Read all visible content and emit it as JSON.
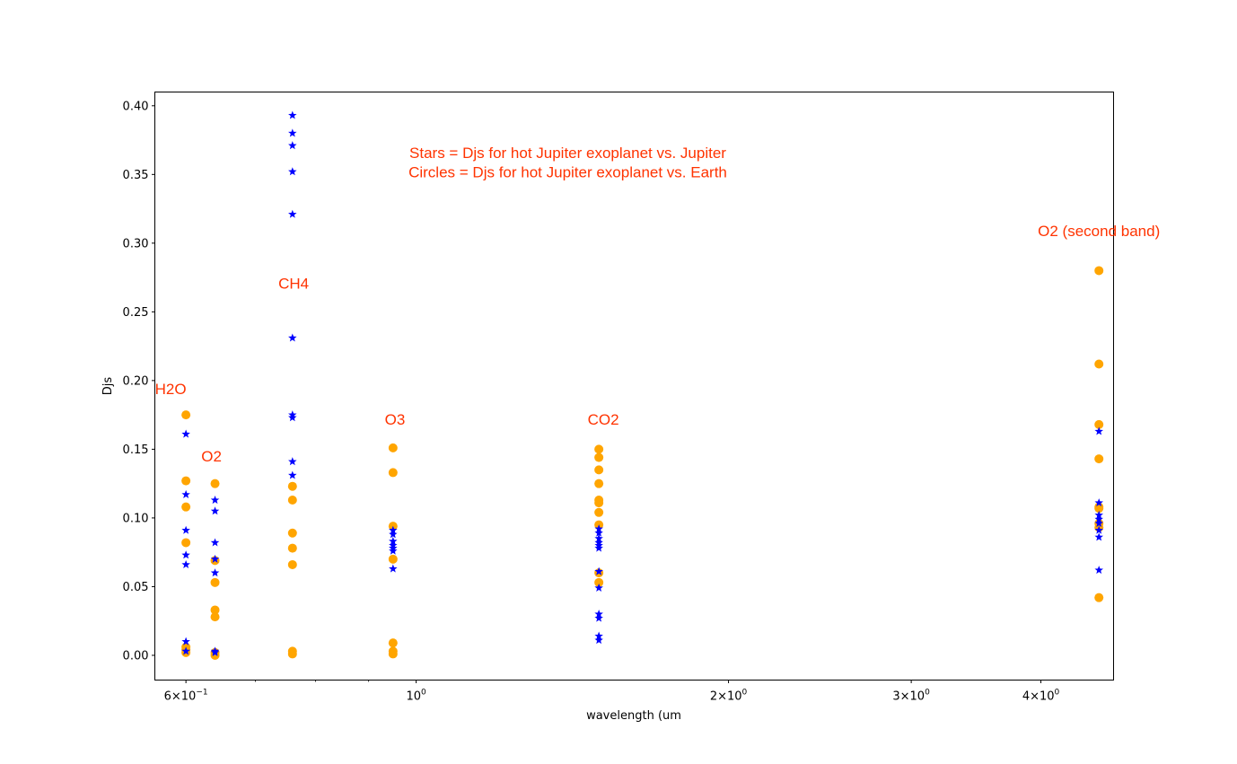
{
  "chart_data": {
    "type": "scatter",
    "xlabel": "wavelength (um",
    "ylabel": "Djs",
    "x_scale": "log",
    "xlim": [
      0.56,
      4.7
    ],
    "ylim": [
      -0.018,
      0.41
    ],
    "grid": false,
    "x_major_ticks": [
      {
        "value": 0.6,
        "base": "6×10",
        "exp": "−1"
      },
      {
        "value": 1.0,
        "base": "10",
        "exp": "0"
      },
      {
        "value": 2.0,
        "base": "2×10",
        "exp": "0"
      },
      {
        "value": 3.0,
        "base": "3×10",
        "exp": "0"
      },
      {
        "value": 4.0,
        "base": "4×10",
        "exp": "0"
      }
    ],
    "x_minor_ticks": [
      0.7,
      0.8,
      0.9
    ],
    "y_ticks": [
      {
        "value": 0.0,
        "label": "0.00"
      },
      {
        "value": 0.05,
        "label": "0.05"
      },
      {
        "value": 0.1,
        "label": "0.10"
      },
      {
        "value": 0.15,
        "label": "0.15"
      },
      {
        "value": 0.2,
        "label": "0.20"
      },
      {
        "value": 0.25,
        "label": "0.25"
      },
      {
        "value": 0.3,
        "label": "0.30"
      },
      {
        "value": 0.35,
        "label": "0.35"
      },
      {
        "value": 0.4,
        "label": "0.40"
      }
    ],
    "colors": {
      "stars": "#0000ff",
      "circles": "#ffa500",
      "annotations": "#ff3300"
    },
    "annotations": [
      {
        "text": "Stars = Djs for hot Jupiter exoplanet vs. Jupiter",
        "x": 1.4,
        "y": 0.362
      },
      {
        "text": "Circles = Djs for hot Jupiter exoplanet vs. Earth",
        "x": 1.4,
        "y": 0.348
      },
      {
        "text": "H2O",
        "x": 0.58,
        "y": 0.19
      },
      {
        "text": "O2",
        "x": 0.635,
        "y": 0.141
      },
      {
        "text": "CH4",
        "x": 0.762,
        "y": 0.267
      },
      {
        "text": "O3",
        "x": 0.954,
        "y": 0.168
      },
      {
        "text": "CO2",
        "x": 1.515,
        "y": 0.168
      },
      {
        "text": "O2 (second band)",
        "x": 4.55,
        "y": 0.305
      }
    ],
    "series": [
      {
        "marker": "star",
        "points": [
          {
            "x": 0.6,
            "y": [
              0.161,
              0.117,
              0.091,
              0.073,
              0.066,
              0.01,
              0.003
            ]
          },
          {
            "x": 0.64,
            "y": [
              0.113,
              0.105,
              0.082,
              0.07,
              0.06,
              0.003,
              0.002
            ]
          },
          {
            "x": 0.76,
            "y": [
              0.393,
              0.38,
              0.371,
              0.352,
              0.321,
              0.231,
              0.175,
              0.173,
              0.141,
              0.131
            ]
          },
          {
            "x": 0.95,
            "y": [
              0.091,
              0.088,
              0.083,
              0.08,
              0.078,
              0.076,
              0.063
            ]
          },
          {
            "x": 1.5,
            "y": [
              0.092,
              0.089,
              0.085,
              0.082,
              0.08,
              0.078,
              0.061,
              0.049,
              0.03,
              0.027,
              0.014,
              0.011
            ]
          },
          {
            "x": 4.55,
            "y": [
              0.163,
              0.111,
              0.102,
              0.099,
              0.096,
              0.091,
              0.086,
              0.062
            ]
          }
        ]
      },
      {
        "marker": "circle",
        "points": [
          {
            "x": 0.6,
            "y": [
              0.175,
              0.127,
              0.108,
              0.082,
              0.006,
              0.004,
              0.002
            ]
          },
          {
            "x": 0.64,
            "y": [
              0.125,
              0.069,
              0.053,
              0.033,
              0.028,
              0.002,
              0.0
            ]
          },
          {
            "x": 0.76,
            "y": [
              0.123,
              0.113,
              0.089,
              0.078,
              0.066,
              0.003,
              0.001
            ]
          },
          {
            "x": 0.95,
            "y": [
              0.151,
              0.133,
              0.094,
              0.07,
              0.009,
              0.003,
              0.001
            ]
          },
          {
            "x": 1.5,
            "y": [
              0.15,
              0.144,
              0.135,
              0.125,
              0.113,
              0.111,
              0.104,
              0.095,
              0.06,
              0.053
            ]
          },
          {
            "x": 4.55,
            "y": [
              0.28,
              0.212,
              0.168,
              0.143,
              0.108,
              0.107,
              0.096,
              0.093,
              0.042
            ]
          }
        ]
      }
    ]
  }
}
